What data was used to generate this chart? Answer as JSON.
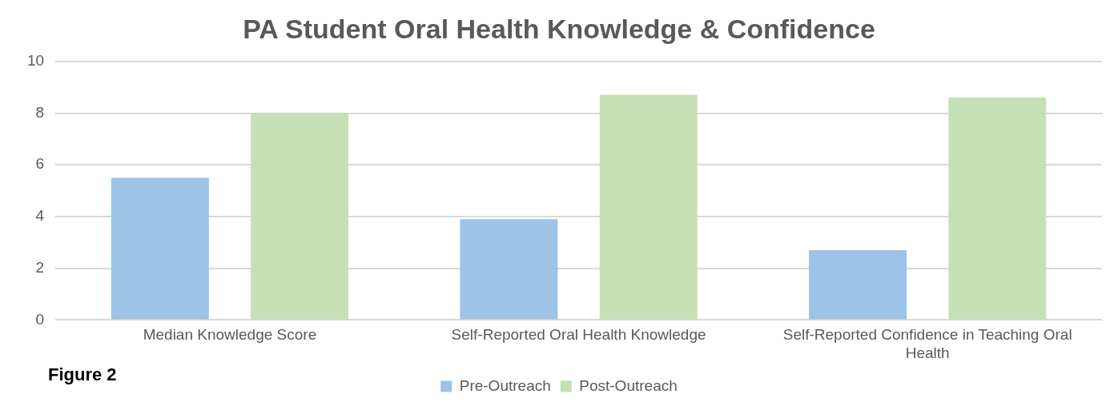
{
  "chart_data": {
    "type": "bar",
    "title": "PA Student Oral Health Knowledge & Confidence",
    "categories": [
      "Median Knowledge Score",
      "Self-Reported Oral Health Knowledge",
      "Self-Reported Confidence in Teaching Oral Health"
    ],
    "series": [
      {
        "name": "Pre-Outreach",
        "color": "#9dc3e6",
        "values": [
          5.5,
          3.9,
          2.7
        ]
      },
      {
        "name": "Post-Outreach",
        "color": "#c5e0b4",
        "values": [
          8.0,
          8.7,
          8.6
        ]
      }
    ],
    "ylim": [
      0,
      10
    ],
    "yticks": [
      0,
      2,
      4,
      6,
      8,
      10
    ],
    "grid": "y",
    "legend": "bottom",
    "annotations": [
      "Figure 2"
    ]
  }
}
